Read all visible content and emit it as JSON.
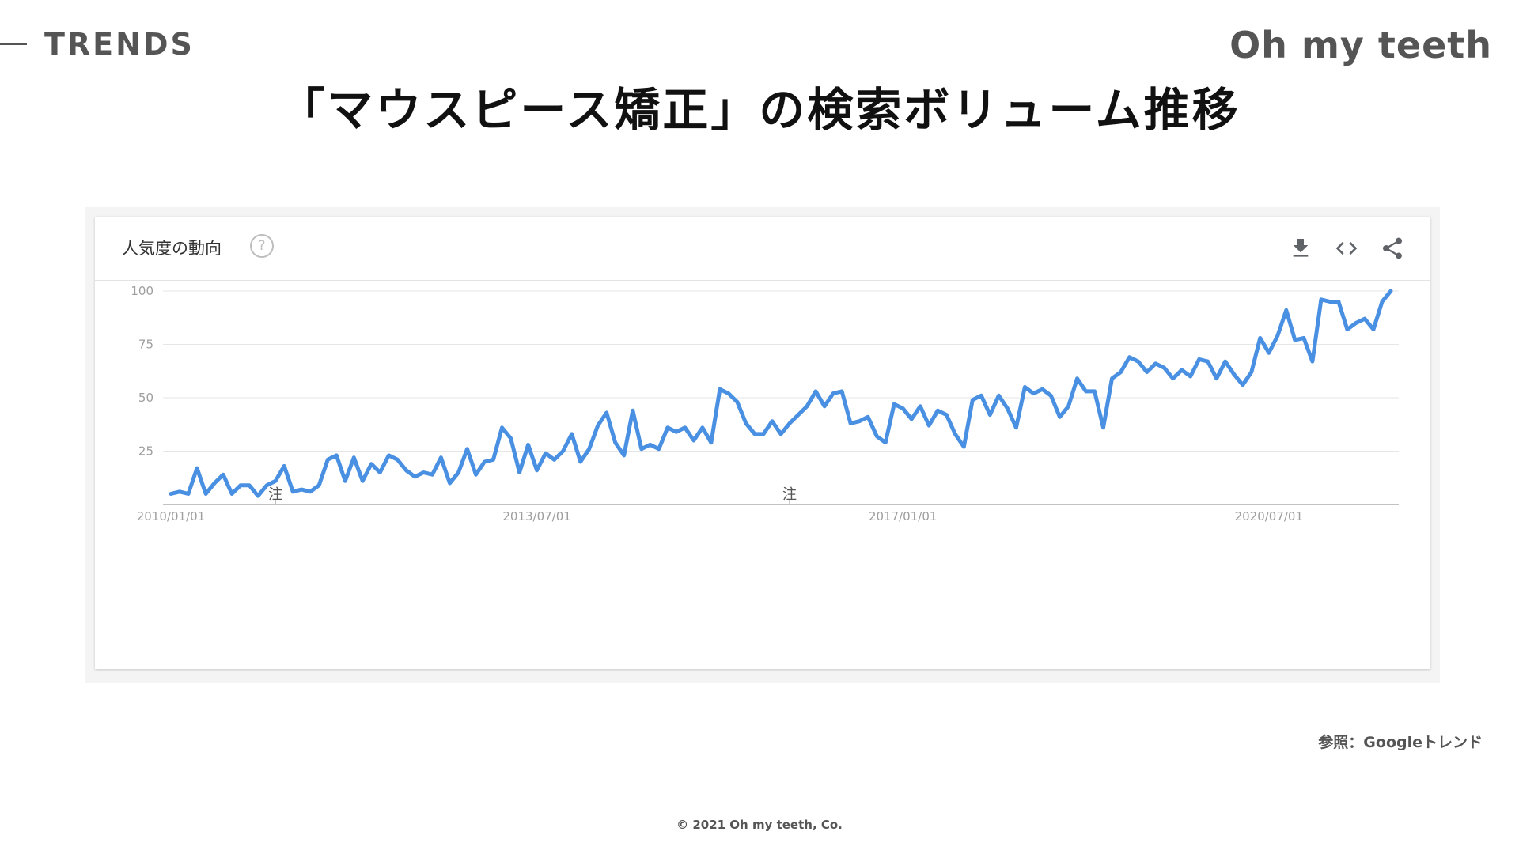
{
  "slide": {
    "section_label": "TRENDS",
    "brand": "Oh my teeth",
    "title": "「マウスピース矯正」の検索ボリューム推移",
    "source": "参照：Googleトレンド",
    "copyright": "© 2021 Oh my teeth, Co."
  },
  "widget": {
    "title": "人気度の動向",
    "help_glyph": "?",
    "icons": [
      "download-icon",
      "embed-code-icon",
      "share-icon"
    ],
    "annotation_label": "注"
  },
  "chart_data": {
    "type": "line",
    "title": "",
    "xlabel": "",
    "ylabel": "",
    "ylim": [
      0,
      100
    ],
    "y_ticks": [
      25,
      50,
      75,
      100
    ],
    "x_ticks": [
      "2010/01/01",
      "2013/07/01",
      "2017/01/01",
      "2020/07/01"
    ],
    "x_start": "2010-01",
    "x_step": "month",
    "annotations": [
      {
        "x": "2011-01",
        "label": "注"
      },
      {
        "x": "2015-12",
        "label": "注"
      }
    ],
    "grid": true,
    "legend": "none",
    "line_color": "#4a90e2",
    "series": [
      {
        "values": [
          5,
          6,
          5,
          17,
          5,
          10,
          14,
          5,
          9,
          9,
          4,
          9,
          11,
          18,
          6,
          7,
          6,
          9,
          21,
          23,
          11,
          22,
          11,
          19,
          15,
          23,
          21,
          16,
          13,
          15,
          14,
          22,
          10,
          15,
          26,
          14,
          20,
          21,
          36,
          31,
          15,
          28,
          16,
          24,
          21,
          25,
          33,
          20,
          26,
          37,
          43,
          29,
          23,
          44,
          26,
          28,
          26,
          36,
          34,
          36,
          30,
          36,
          29,
          54,
          52,
          48,
          38,
          33,
          33,
          39,
          33,
          38,
          42,
          46,
          53,
          46,
          52,
          53,
          38,
          39,
          41,
          32,
          29,
          47,
          45,
          40,
          46,
          37,
          44,
          42,
          33,
          27,
          49,
          51,
          42,
          51,
          45,
          36,
          55,
          52,
          54,
          51,
          41,
          46,
          59,
          53,
          53,
          36,
          59,
          62,
          69,
          67,
          62,
          66,
          64,
          59,
          63,
          60,
          68,
          67,
          59,
          67,
          61,
          56,
          62,
          78,
          71,
          79,
          91,
          77,
          78,
          67,
          96,
          95,
          95,
          82,
          85,
          87,
          82,
          95,
          100
        ]
      }
    ]
  }
}
